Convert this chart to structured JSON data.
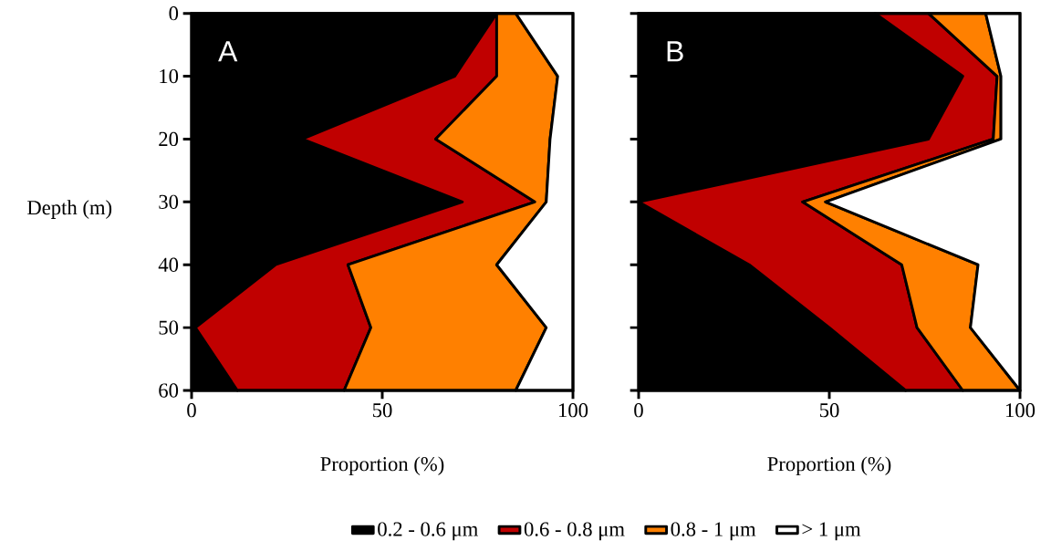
{
  "chart_data": [
    {
      "type": "area",
      "title": "A",
      "orientation": "horizontal",
      "stacked": true,
      "xlabel": "Proportion (%)",
      "ylabel": "Depth (m)",
      "categories": [
        "0",
        "10",
        "20",
        "30",
        "40",
        "50",
        "60"
      ],
      "xlim": [
        0,
        100
      ],
      "xticks": [
        0,
        50,
        100
      ],
      "legend": "bottom",
      "series": [
        {
          "name": "0.2 - 0.6 μm",
          "color": "#000000",
          "values": [
            80,
            69,
            29,
            71,
            22,
            1,
            12
          ]
        },
        {
          "name": "0.6 - 0.8 μm",
          "color": "#c00000",
          "values": [
            0,
            11,
            35,
            19,
            19,
            46,
            28
          ]
        },
        {
          "name": "0.8 - 1 μm",
          "color": "#ff8000",
          "values": [
            5,
            16,
            30,
            3,
            39,
            46,
            45
          ]
        },
        {
          "name": "> 1 μm",
          "color": "#ffffff",
          "values": [
            15,
            4,
            6,
            7,
            20,
            7,
            15
          ]
        }
      ]
    },
    {
      "type": "area",
      "title": "B",
      "orientation": "horizontal",
      "stacked": true,
      "xlabel": "Proportion (%)",
      "tick_labels": "x",
      "categories": [
        null,
        null,
        null,
        null,
        null,
        null,
        null
      ],
      "xlim": [
        0,
        100
      ],
      "xticks": [
        0,
        50,
        100
      ],
      "series": [
        {
          "color": "#000000",
          "values": [
            62,
            85,
            76,
            0,
            29,
            50,
            70
          ]
        },
        {
          "color": "#c00000",
          "values": [
            14,
            9,
            17,
            43,
            40,
            23,
            15
          ]
        },
        {
          "color": "#ff8000",
          "values": [
            15,
            1,
            2,
            6,
            20,
            14,
            15
          ]
        },
        {
          "color": "#ffffff",
          "values": [
            9,
            5,
            5,
            51,
            11,
            13,
            0
          ]
        }
      ]
    }
  ]
}
